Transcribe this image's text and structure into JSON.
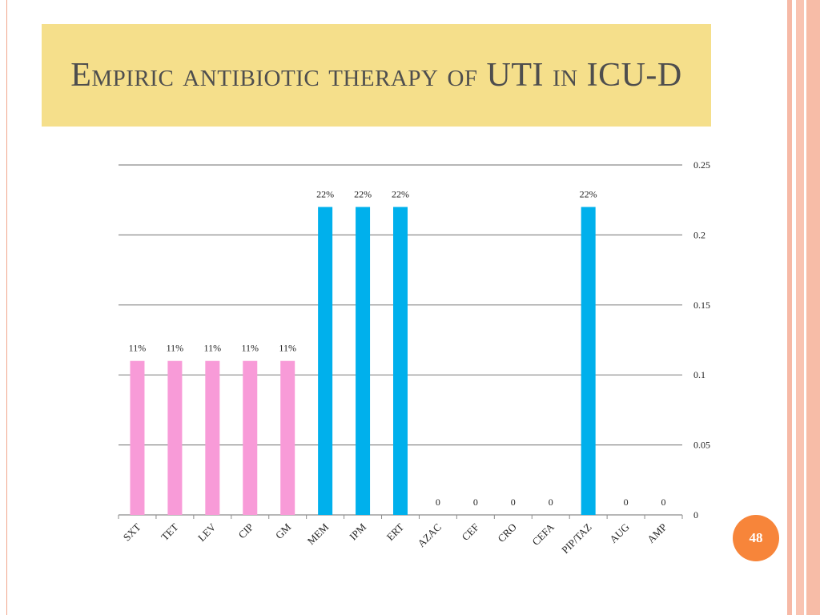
{
  "slide": {
    "title": "Empiric antibiotic therapy of UTI in ICU-D",
    "page_number": "48"
  },
  "colors": {
    "title_background": "#f5df8b",
    "page_badge": "#f7853a"
  },
  "chart_data": {
    "type": "bar",
    "title": "",
    "xlabel": "",
    "ylabel": "",
    "categories": [
      "SXT",
      "TET",
      "LEV",
      "CIP",
      "GM",
      "MEM",
      "IPM",
      "ERT",
      "AZAC",
      "CEF",
      "CRO",
      "CEFA",
      "PIP/TAZ",
      "AUG",
      "AMP"
    ],
    "values": [
      0.11,
      0.11,
      0.11,
      0.11,
      0.11,
      0.22,
      0.22,
      0.22,
      0,
      0,
      0,
      0,
      0.22,
      0,
      0
    ],
    "data_labels": [
      "11%",
      "11%",
      "11%",
      "11%",
      "11%",
      "22%",
      "22%",
      "22%",
      "0",
      "0",
      "0",
      "0",
      "22%",
      "0",
      "0"
    ],
    "bar_colors": [
      "#f89bd8",
      "#f89bd8",
      "#f89bd8",
      "#f89bd8",
      "#f89bd8",
      "#00b0ec",
      "#00b0ec",
      "#00b0ec",
      "#00b0ec",
      "#00b0ec",
      "#00b0ec",
      "#00b0ec",
      "#00b0ec",
      "#00b0ec",
      "#00b0ec"
    ],
    "y_ticks": [
      0,
      0.05,
      0.1,
      0.15,
      0.2,
      0.25
    ],
    "y_tick_labels": [
      "0",
      "0.05",
      "0.1",
      "0.15",
      "0.2",
      "0.25"
    ],
    "ylim": [
      0,
      0.25
    ],
    "y_axis_position": "right",
    "grid": true,
    "legend": "none"
  }
}
